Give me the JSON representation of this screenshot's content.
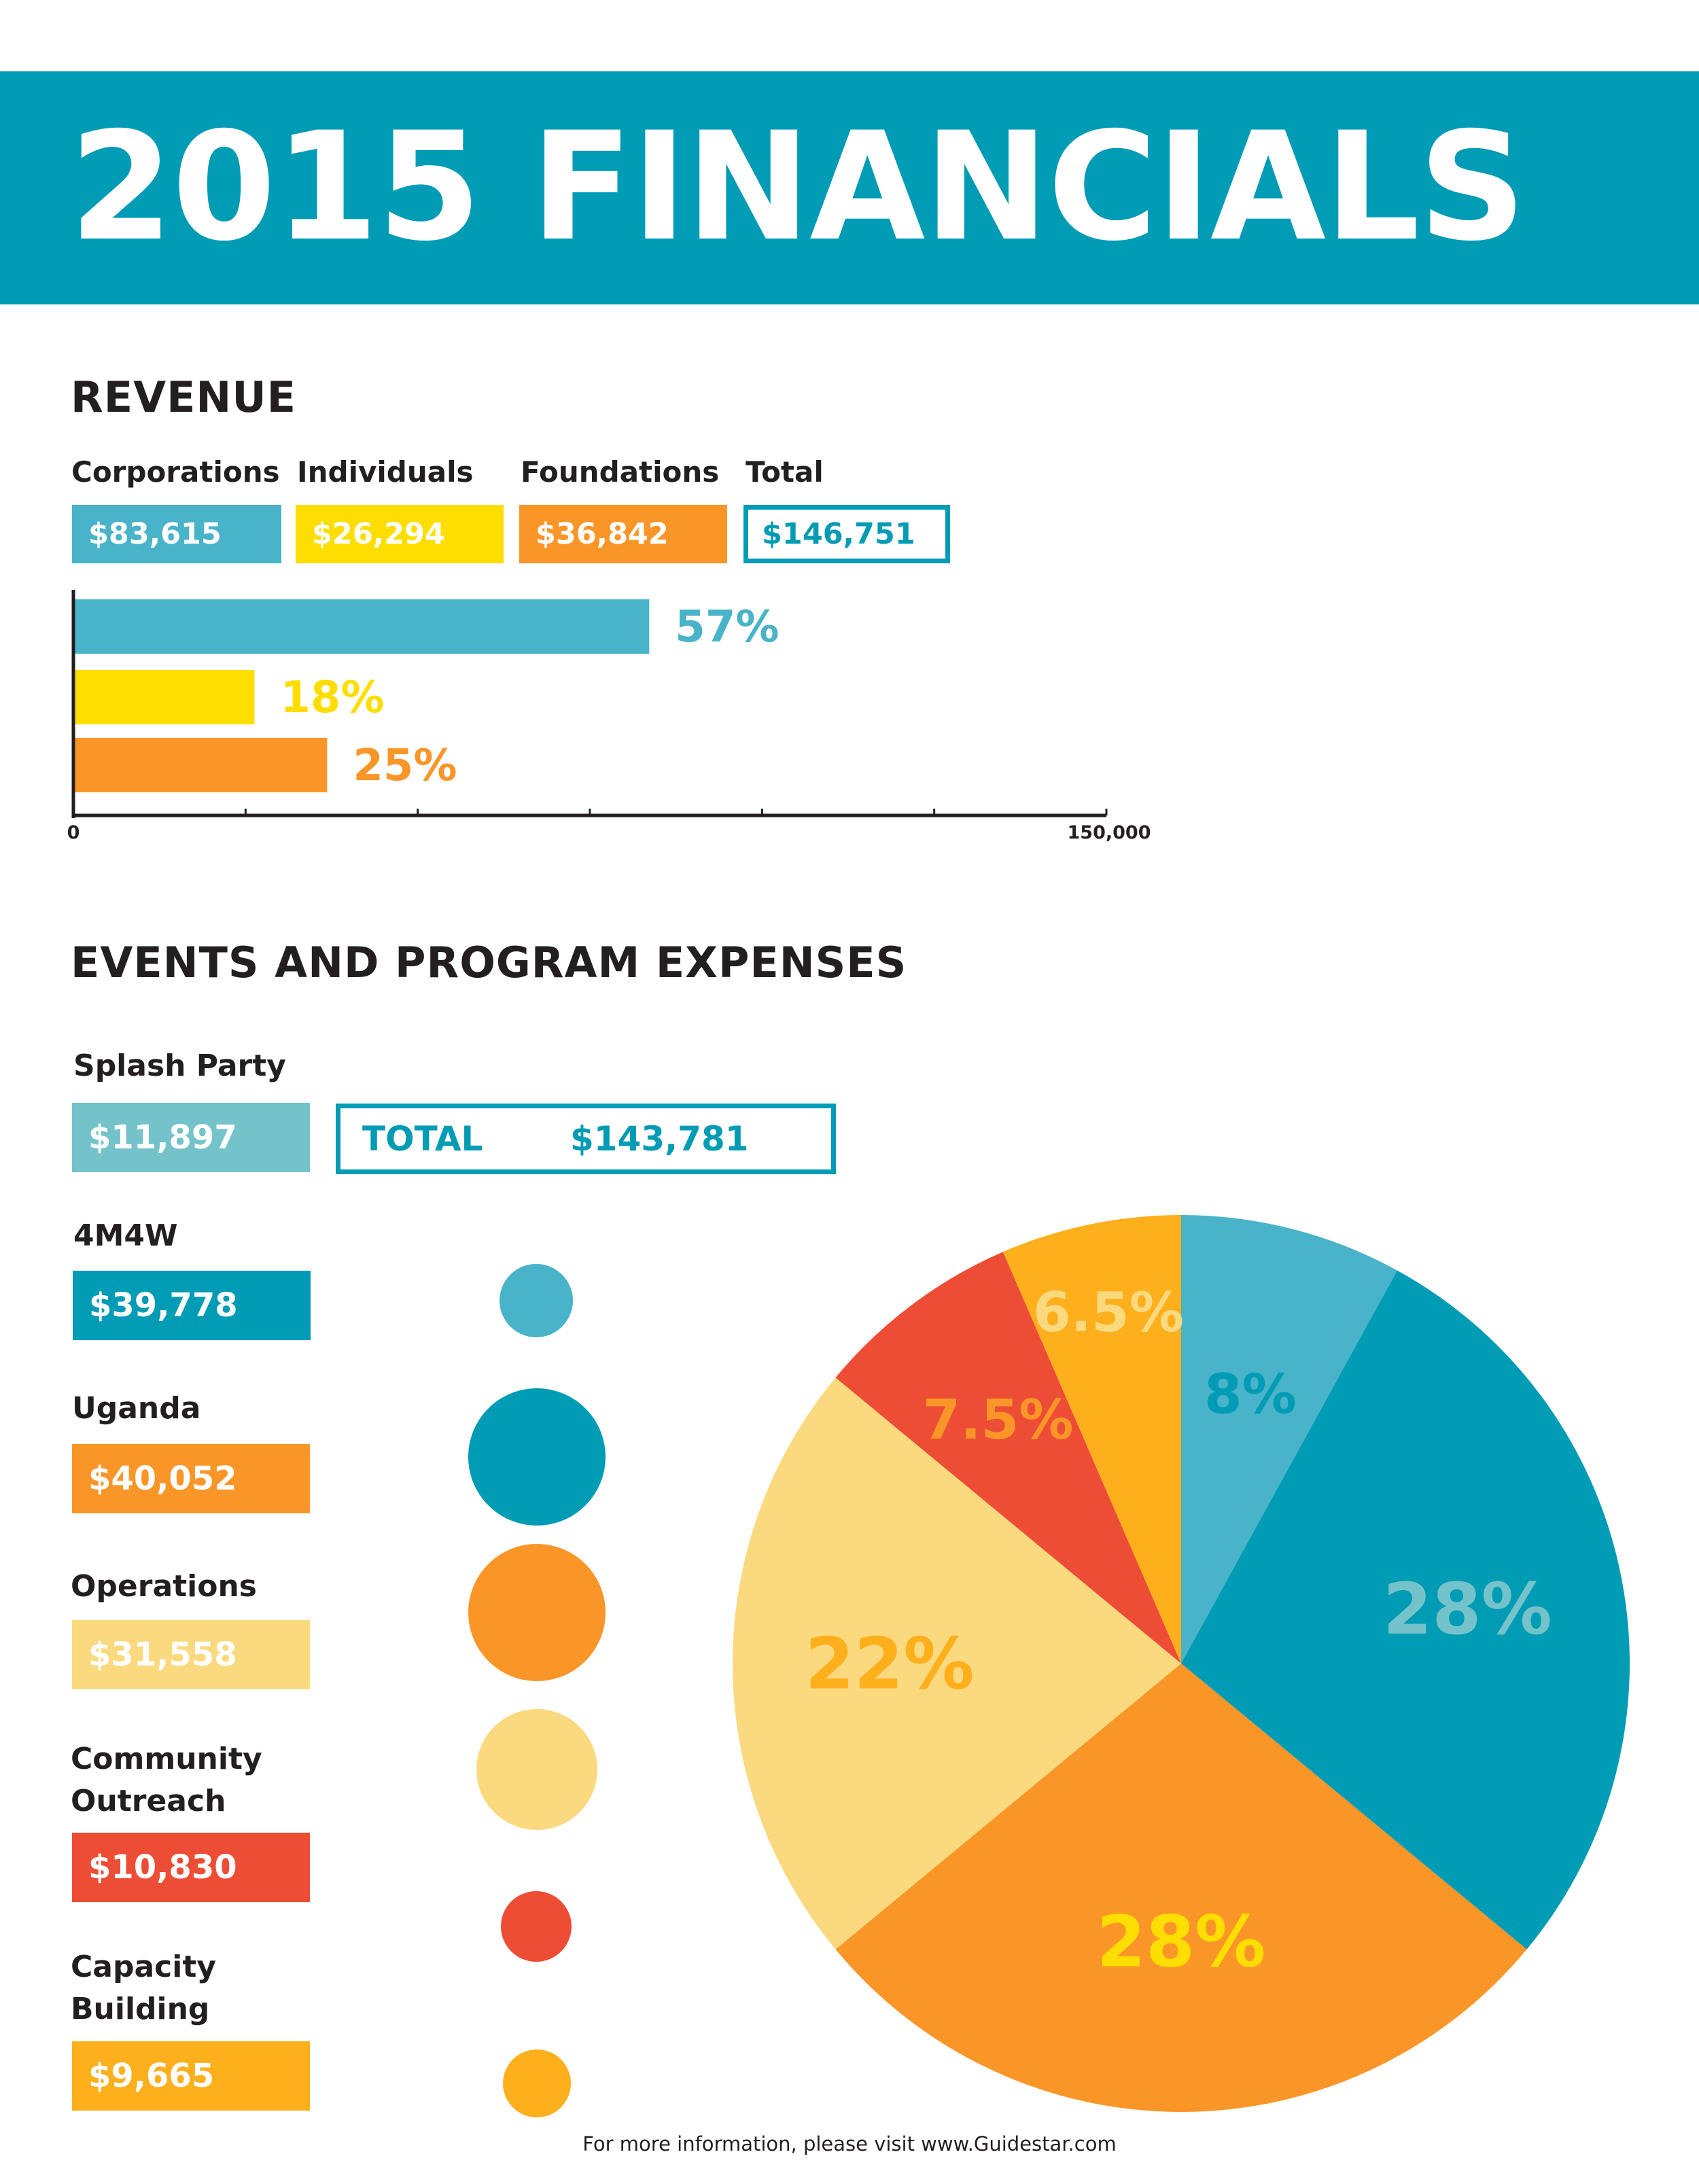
{
  "title": "2015 FINANCIALS",
  "revenue": {
    "heading": "REVENUE",
    "items": [
      {
        "label": "Corporations",
        "amount": "$83,615",
        "color": "#48b3c9"
      },
      {
        "label": "Individuals",
        "amount": "$26,294",
        "color": "#fede00"
      },
      {
        "label": "Foundations",
        "amount": "$36,842",
        "color": "#fa9628"
      }
    ],
    "total": {
      "label": "Total",
      "amount": "$146,751",
      "color": "#009bb4"
    }
  },
  "expenses": {
    "heading": "EVENTS AND PROGRAM EXPENSES",
    "total_label": "TOTAL",
    "total_amount": "$143,781",
    "items": [
      {
        "label": "Splash Party",
        "amount": "$11,897",
        "color": "#74c3ca"
      },
      {
        "label": "4M4W",
        "amount": "$39,778",
        "color": "#009bb4"
      },
      {
        "label": "Uganda",
        "amount": "$40,052",
        "color": "#fa9628"
      },
      {
        "label": "Operations",
        "amount": "$31,558",
        "color": "#fbd97f"
      },
      {
        "label": "Community Outreach",
        "amount": "$10,830",
        "color": "#ee4d35"
      },
      {
        "label": "Capacity Building",
        "amount": "$9,665",
        "color": "#feaf1c"
      }
    ],
    "dot_colors": [
      "#48b3c9",
      "#009bb4",
      "#fa9628",
      "#fbd97f",
      "#ee4d35",
      "#feaf1c"
    ]
  },
  "chart_data": [
    {
      "type": "bar",
      "orientation": "horizontal",
      "categories": [
        "Corporations",
        "Individuals",
        "Foundations"
      ],
      "values": [
        83615,
        26294,
        36842
      ],
      "data_labels": [
        "57%",
        "18%",
        "25%"
      ],
      "colors": [
        "#48b3c9",
        "#fede00",
        "#fa9628"
      ],
      "label_colors": [
        "#48b3c9",
        "#fede00",
        "#fa9628"
      ],
      "xlim": [
        0,
        150000
      ],
      "tick_labels": [
        "0",
        "150,000"
      ],
      "minor_ticks": 6,
      "grid": false
    },
    {
      "type": "pie",
      "start": "top",
      "direction": "clockwise",
      "labels": [
        "8%",
        "28%",
        "28%",
        "22%",
        "7.5%",
        "6.5%"
      ],
      "values": [
        8,
        28,
        28,
        22,
        7.5,
        6.5
      ],
      "colors": [
        "#48b3c9",
        "#009bb4",
        "#fa9628",
        "#fbd97f",
        "#ee4d35",
        "#feaf1c"
      ],
      "label_colors": [
        "#009bb4",
        "#74c3ca",
        "#fede00",
        "#feaf1c",
        "#fa9628",
        "#fbd97f"
      ]
    }
  ],
  "footer": "For more information, please visit www.Guidestar.com"
}
